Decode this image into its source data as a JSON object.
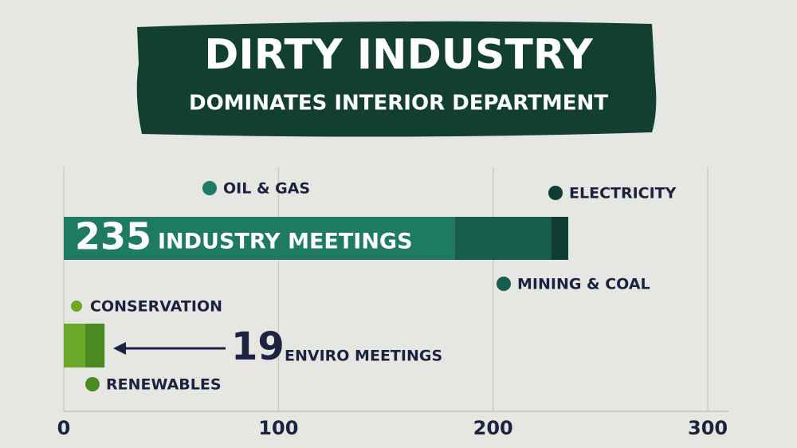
{
  "chart_data": {
    "type": "bar",
    "orientation": "horizontal",
    "title": "DIRTY INDUSTRY",
    "subtitle": "DOMINATES INTERIOR DEPARTMENT",
    "categories": [
      "INDUSTRY MEETINGS",
      "ENVIRO MEETINGS"
    ],
    "totals": [
      235,
      19
    ],
    "series": [
      {
        "name": "OIL & GAS",
        "color": "#1f7a62",
        "values": [
          182,
          null
        ]
      },
      {
        "name": "MINING & COAL",
        "color": "#185d4b",
        "values": [
          45,
          null
        ]
      },
      {
        "name": "ELECTRICITY",
        "color": "#0f3d32",
        "values": [
          8,
          null
        ]
      },
      {
        "name": "CONSERVATION",
        "color": "#6aa82a",
        "values": [
          null,
          10
        ]
      },
      {
        "name": "RENEWABLES",
        "color": "#4a8a22",
        "values": [
          null,
          9
        ]
      }
    ],
    "xlim": [
      0,
      310
    ],
    "xticks": [
      0,
      100,
      200,
      300
    ],
    "grid": true
  }
}
